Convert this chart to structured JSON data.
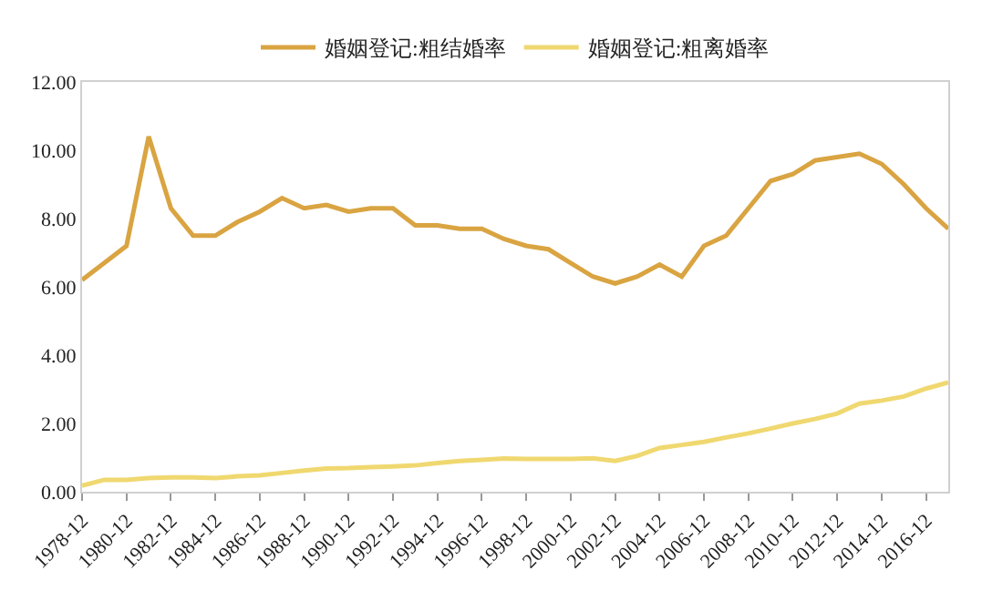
{
  "chart_data": {
    "type": "line",
    "legend": "top",
    "marker": "none",
    "line_style": "solid",
    "categories": [
      "1978-12",
      null,
      "1980-12",
      null,
      "1982-12",
      null,
      "1984-12",
      null,
      "1986-12",
      null,
      "1988-12",
      null,
      "1990-12",
      null,
      "1992-12",
      null,
      "1994-12",
      null,
      "1996-12",
      null,
      "1998-12",
      null,
      "2000-12",
      null,
      "2002-12",
      null,
      "2004-12",
      null,
      "2006-12",
      null,
      "2008-12",
      null,
      "2010-12",
      null,
      "2012-12",
      null,
      "2014-12",
      null,
      "2016-12",
      null
    ],
    "series": [
      {
        "name": "婚姻登记:粗结婚率",
        "color": "#d9a441",
        "values": [
          6.2,
          6.7,
          7.2,
          10.4,
          8.3,
          7.5,
          7.5,
          7.9,
          8.2,
          8.6,
          8.3,
          8.4,
          8.2,
          8.3,
          8.3,
          7.8,
          7.8,
          7.7,
          7.7,
          7.4,
          7.2,
          7.1,
          6.7,
          6.3,
          6.1,
          6.3,
          6.65,
          6.3,
          7.2,
          7.5,
          8.3,
          9.1,
          9.3,
          9.7,
          9.8,
          9.9,
          9.6,
          9.0,
          8.3,
          7.7
        ]
      },
      {
        "name": "婚姻登记:粗离婚率",
        "color": "#f0d870",
        "values": [
          0.18,
          0.35,
          0.35,
          0.4,
          0.42,
          0.42,
          0.4,
          0.45,
          0.48,
          0.55,
          0.62,
          0.68,
          0.69,
          0.72,
          0.74,
          0.77,
          0.84,
          0.9,
          0.93,
          0.97,
          0.96,
          0.96,
          0.96,
          0.98,
          0.9,
          1.05,
          1.28,
          1.37,
          1.46,
          1.59,
          1.71,
          1.85,
          2.0,
          2.13,
          2.29,
          2.58,
          2.67,
          2.79,
          3.02,
          3.2
        ]
      }
    ],
    "ylim": [
      0,
      12
    ],
    "yticks": [
      {
        "value": 0,
        "label": "0.00"
      },
      {
        "value": 2,
        "label": "2.00"
      },
      {
        "value": 4,
        "label": "4.00"
      },
      {
        "value": 6,
        "label": "6.00"
      },
      {
        "value": 8,
        "label": "8.00"
      },
      {
        "value": 10,
        "label": "10.00"
      },
      {
        "value": 12,
        "label": "12.00"
      }
    ]
  }
}
